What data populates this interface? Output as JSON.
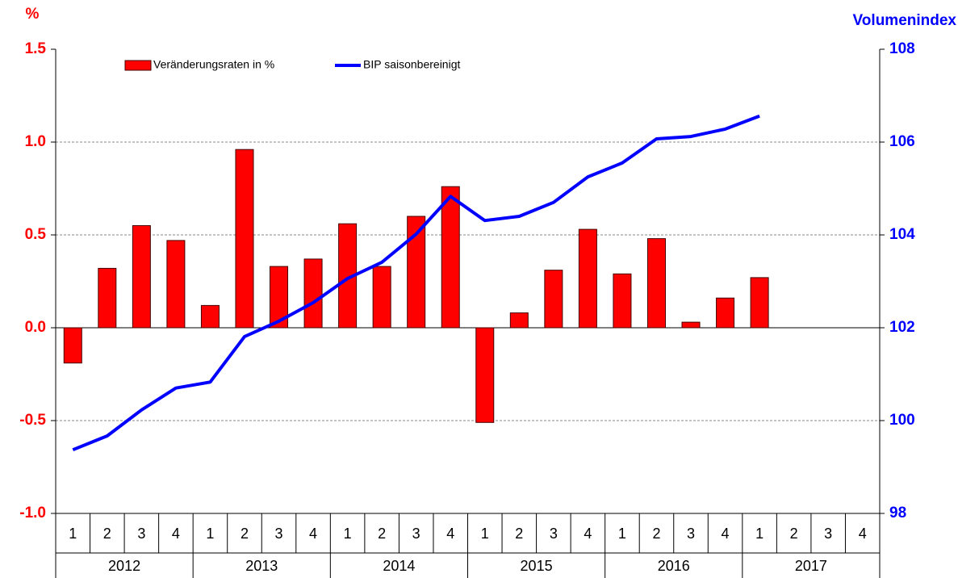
{
  "chart_data": {
    "type": "bar",
    "y_label": "%",
    "y2_label": "Volumenindex",
    "categories": [
      "1",
      "2",
      "3",
      "4",
      "1",
      "2",
      "3",
      "4",
      "1",
      "2",
      "3",
      "4",
      "1",
      "2",
      "3",
      "4",
      "1",
      "2",
      "3",
      "4",
      "1",
      "2",
      "3",
      "4"
    ],
    "years": [
      "2012",
      "2013",
      "2014",
      "2015",
      "2016",
      "2017"
    ],
    "series": [
      {
        "name": "Veränderungsraten in %",
        "type": "bar",
        "color": "#ff0000",
        "values": [
          -0.19,
          0.32,
          0.55,
          0.47,
          0.12,
          0.96,
          0.33,
          0.37,
          0.56,
          0.33,
          0.6,
          0.76,
          -0.51,
          0.08,
          0.31,
          0.53,
          0.29,
          0.48,
          0.03,
          0.16,
          0.27,
          null,
          null,
          null
        ]
      },
      {
        "name": "BIP saisonbereinigt",
        "type": "line",
        "color": "#0000ff",
        "axis": "y2",
        "values": [
          99.37,
          99.67,
          100.23,
          100.7,
          100.83,
          101.81,
          102.14,
          102.54,
          103.06,
          103.41,
          104.02,
          104.83,
          104.31,
          104.4,
          104.7,
          105.25,
          105.55,
          106.07,
          106.12,
          106.28,
          106.56,
          null,
          null,
          null
        ]
      }
    ],
    "ylim": [
      -1.0,
      1.5
    ],
    "yticks": [
      {
        "value": -1.0,
        "label": "-1.0"
      },
      -0.5,
      {
        "value": 0.0,
        "label": "0.0"
      },
      0.5,
      {
        "value": 1.0,
        "label": "1.0"
      },
      1.5
    ],
    "y2lim": [
      98,
      108
    ],
    "y2ticks": [
      98,
      100,
      102,
      104,
      106,
      108
    ],
    "grid": true,
    "legend": "top"
  }
}
